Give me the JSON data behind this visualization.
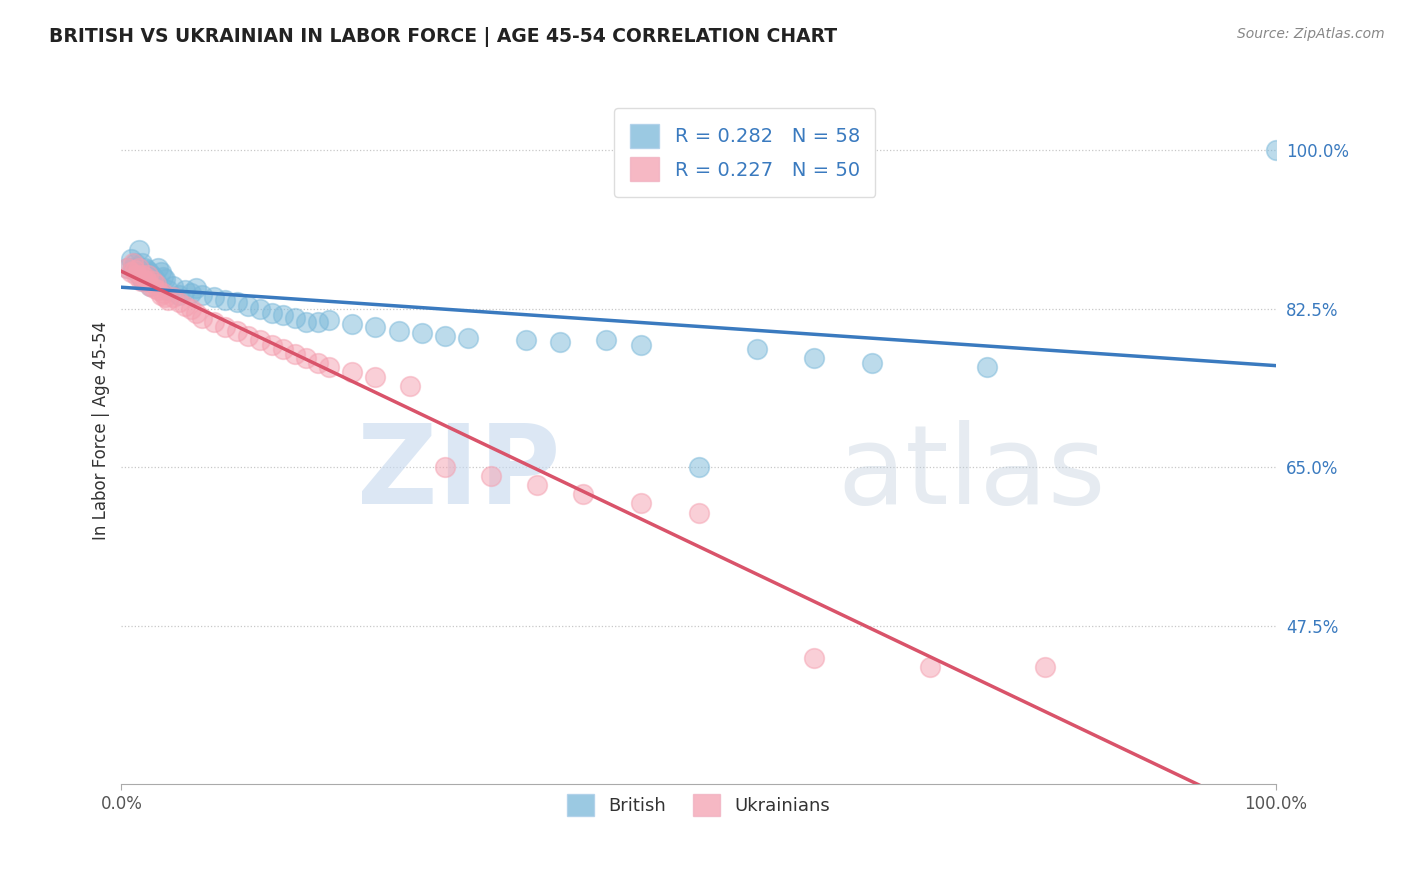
{
  "title": "BRITISH VS UKRAINIAN IN LABOR FORCE | AGE 45-54 CORRELATION CHART",
  "source": "Source: ZipAtlas.com",
  "ylabel": "In Labor Force | Age 45-54",
  "xlim": [
    0.0,
    1.0
  ],
  "ylim": [
    0.3,
    1.08
  ],
  "british_R": 0.282,
  "british_N": 58,
  "ukrainian_R": 0.227,
  "ukrainian_N": 50,
  "british_color": "#7ab8d9",
  "ukrainian_color": "#f4a0b0",
  "british_line_color": "#3a7abf",
  "ukrainian_line_color": "#d9536a",
  "legend_british_label": "British",
  "legend_ukrainian_label": "Ukrainians",
  "watermark_zip": "ZIP",
  "watermark_atlas": "atlas",
  "british_x": [
    0.005,
    0.008,
    0.01,
    0.012,
    0.013,
    0.015,
    0.015,
    0.017,
    0.018,
    0.019,
    0.02,
    0.02,
    0.022,
    0.023,
    0.024,
    0.025,
    0.026,
    0.027,
    0.028,
    0.03,
    0.032,
    0.034,
    0.036,
    0.038,
    0.04,
    0.045,
    0.05,
    0.055,
    0.06,
    0.065,
    0.07,
    0.08,
    0.09,
    0.1,
    0.11,
    0.12,
    0.13,
    0.14,
    0.15,
    0.16,
    0.17,
    0.18,
    0.2,
    0.22,
    0.24,
    0.26,
    0.28,
    0.3,
    0.35,
    0.38,
    0.42,
    0.45,
    0.5,
    0.55,
    0.6,
    0.65,
    0.75,
    1.0
  ],
  "british_y": [
    0.87,
    0.88,
    0.87,
    0.875,
    0.865,
    0.87,
    0.89,
    0.86,
    0.875,
    0.855,
    0.87,
    0.86,
    0.868,
    0.855,
    0.865,
    0.85,
    0.862,
    0.86,
    0.858,
    0.855,
    0.87,
    0.865,
    0.86,
    0.858,
    0.845,
    0.85,
    0.84,
    0.845,
    0.842,
    0.848,
    0.84,
    0.838,
    0.835,
    0.832,
    0.828,
    0.825,
    0.82,
    0.818,
    0.815,
    0.81,
    0.81,
    0.812,
    0.808,
    0.805,
    0.8,
    0.798,
    0.795,
    0.792,
    0.79,
    0.788,
    0.79,
    0.785,
    0.65,
    0.78,
    0.77,
    0.765,
    0.76,
    1.0
  ],
  "ukrainian_x": [
    0.005,
    0.008,
    0.01,
    0.012,
    0.013,
    0.015,
    0.017,
    0.018,
    0.019,
    0.02,
    0.022,
    0.023,
    0.025,
    0.027,
    0.028,
    0.03,
    0.032,
    0.034,
    0.036,
    0.038,
    0.04,
    0.045,
    0.05,
    0.055,
    0.06,
    0.065,
    0.07,
    0.08,
    0.09,
    0.1,
    0.11,
    0.12,
    0.13,
    0.14,
    0.15,
    0.16,
    0.17,
    0.18,
    0.2,
    0.22,
    0.25,
    0.28,
    0.32,
    0.36,
    0.4,
    0.45,
    0.5,
    0.6,
    0.7,
    0.8
  ],
  "ukrainian_y": [
    0.87,
    0.865,
    0.875,
    0.868,
    0.862,
    0.87,
    0.855,
    0.862,
    0.858,
    0.86,
    0.855,
    0.862,
    0.85,
    0.855,
    0.848,
    0.852,
    0.845,
    0.84,
    0.842,
    0.838,
    0.835,
    0.838,
    0.832,
    0.828,
    0.825,
    0.82,
    0.815,
    0.81,
    0.805,
    0.8,
    0.795,
    0.79,
    0.785,
    0.78,
    0.775,
    0.77,
    0.765,
    0.76,
    0.755,
    0.75,
    0.74,
    0.65,
    0.64,
    0.63,
    0.62,
    0.61,
    0.6,
    0.44,
    0.43,
    0.43
  ]
}
